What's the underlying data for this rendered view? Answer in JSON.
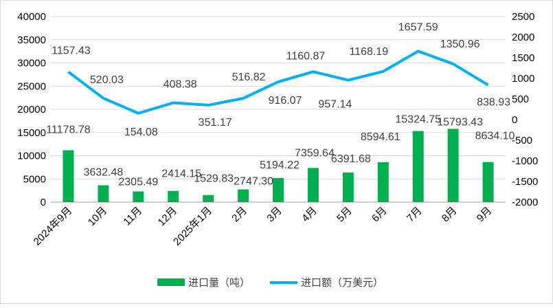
{
  "chart_data": {
    "type": "bar+line",
    "categories": [
      "2024年9月",
      "10月",
      "11月",
      "12月",
      "2025年1月",
      "2月",
      "3月",
      "4月",
      "5月",
      "6月",
      "7月",
      "8月",
      "9月"
    ],
    "series": [
      {
        "name": "进口量（吨）",
        "type": "bar",
        "axis": "left",
        "color": "#00b050",
        "values": [
          11178.78,
          3632.48,
          2305.49,
          2414.15,
          1529.83,
          2747.3,
          5194.22,
          7359.64,
          6391.68,
          8594.61,
          15324.75,
          15793.43,
          8634.1
        ],
        "labels": [
          "11178.78",
          "3632.48",
          "2305.49",
          "2414.15",
          "1529.83",
          "2747.30",
          "5194.22",
          "7359.64",
          "6391.68",
          "8594.61",
          "15324.75",
          "15793.43",
          "8634.10"
        ]
      },
      {
        "name": "进口额（万美元）",
        "type": "line",
        "axis": "right",
        "color": "#00b0f0",
        "values": [
          1157.43,
          520.03,
          154.08,
          408.38,
          351.17,
          516.82,
          916.07,
          1160.87,
          957.14,
          1168.19,
          1657.59,
          1350.96,
          838.93
        ],
        "labels": [
          "1157.43",
          "520.03",
          "154.08",
          "408.38",
          "351.17",
          "516.82",
          "916.07",
          "1160.87",
          "957.14",
          "1168.19",
          "1657.59",
          "1350.96",
          "838.93"
        ]
      }
    ],
    "left_axis": {
      "min": 0,
      "max": 40000,
      "step": 5000,
      "ticks": [
        "0",
        "5000",
        "10000",
        "15000",
        "20000",
        "25000",
        "30000",
        "35000",
        "40000"
      ]
    },
    "right_axis": {
      "min": -2000,
      "max": 2500,
      "step": 500,
      "ticks": [
        "-2000",
        "-1500",
        "-1000",
        "-500",
        "0",
        "500",
        "1000",
        "1500",
        "2000",
        "2500"
      ]
    },
    "grid": true,
    "legend": "bottom"
  }
}
